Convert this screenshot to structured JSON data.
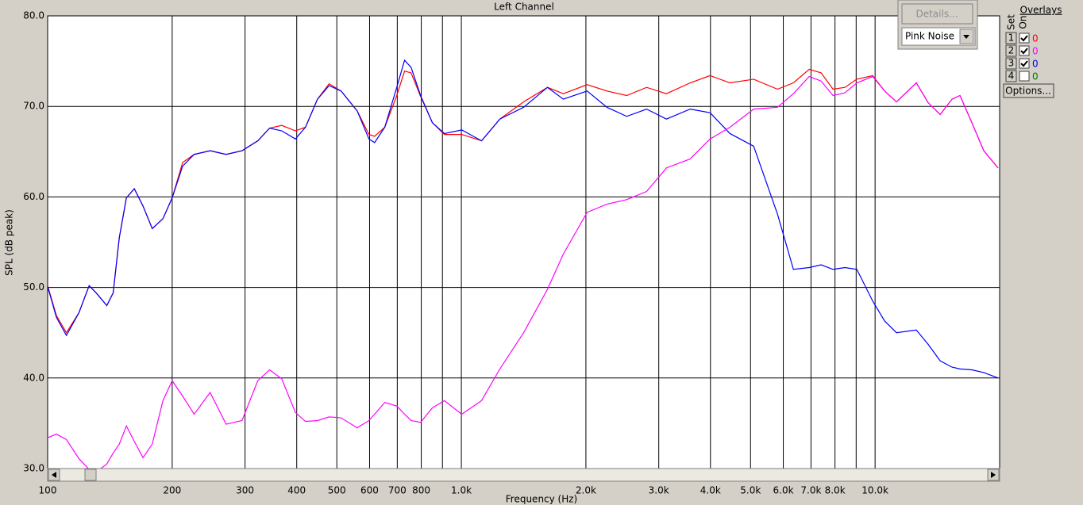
{
  "chart_data": {
    "type": "line",
    "title": "Left Channel",
    "x_label": "Frequency (Hz)",
    "y_label": "SPL (dB peak)",
    "log_x": true,
    "grid": true,
    "xlim": [
      100,
      20000
    ],
    "ylim": [
      30,
      80
    ],
    "xticks": [
      100,
      200,
      300,
      400,
      500,
      600,
      700,
      800,
      {
        "value": 900,
        "label": null
      },
      {
        "value": 1000,
        "label": "1.0k"
      },
      {
        "value": 2000,
        "label": "2.0k"
      },
      {
        "value": 3000,
        "label": "3.0k"
      },
      {
        "value": 4000,
        "label": "4.0k"
      },
      {
        "value": 5000,
        "label": "5.0k"
      },
      {
        "value": 6000,
        "label": "6.0k"
      },
      {
        "value": 7000,
        "label": "7.0k"
      },
      {
        "value": 8000,
        "label": "8.0k"
      },
      {
        "value": 9000,
        "label": null
      },
      {
        "value": 10000,
        "label": "10.0k"
      }
    ],
    "yticks": [
      {
        "value": 30,
        "label": "30.0"
      },
      {
        "value": 40,
        "label": "40.0"
      },
      {
        "value": 50,
        "label": "50.0"
      },
      {
        "value": 60,
        "label": "60.0"
      },
      {
        "value": 70,
        "label": "70.0"
      },
      {
        "value": 80,
        "label": "80.0"
      }
    ],
    "x": [
      100,
      105,
      111,
      119,
      126,
      131,
      139,
      144,
      149,
      155,
      162,
      170,
      179,
      190,
      200,
      212,
      226,
      247,
      270,
      295,
      322,
      344,
      368,
      397,
      420,
      449,
      479,
      512,
      560,
      598,
      617,
      653,
      698,
      729,
      756,
      797,
      851,
      910,
      1002,
      1119,
      1239,
      1414,
      1615,
      1764,
      2014,
      2248,
      2510,
      2804,
      3131,
      3574,
      3992,
      4459,
      5088,
      5809,
      6347,
      6932,
      7405,
      7913,
      8454,
      9034,
      9867,
      10544,
      11265,
      12580,
      13443,
      14362,
      15346,
      16040,
      17137,
      18312,
      19828
    ],
    "series": [
      {
        "color": "#ff0000",
        "values": [
          50.2,
          46.9,
          45.0,
          47.2,
          50.2,
          49.4,
          48.0,
          49.4,
          55.5,
          59.9,
          60.9,
          59.0,
          56.5,
          57.6,
          59.9,
          63.8,
          64.7,
          65.1,
          64.7,
          65.1,
          66.2,
          67.6,
          67.9,
          67.3,
          67.7,
          70.8,
          72.5,
          71.7,
          69.5,
          66.9,
          66.7,
          67.7,
          71.2,
          73.9,
          73.7,
          71.1,
          68.2,
          66.9,
          66.9,
          66.2,
          68.6,
          70.5,
          72.1,
          71.4,
          72.4,
          71.7,
          71.2,
          72.1,
          71.4,
          72.6,
          73.4,
          72.6,
          73.0,
          71.9,
          72.6,
          74.1,
          73.7,
          71.9,
          72.1,
          73.0,
          73.4,
          71.7,
          70.5,
          72.6,
          70.4,
          69.1,
          70.8,
          71.2,
          68.2,
          65.1,
          63.2
        ]
      },
      {
        "color": "#0000ff",
        "values": [
          50.1,
          46.7,
          44.7,
          47.2,
          50.2,
          49.4,
          48.0,
          49.4,
          55.5,
          59.9,
          60.9,
          59.0,
          56.5,
          57.6,
          59.9,
          63.4,
          64.7,
          65.1,
          64.7,
          65.1,
          66.2,
          67.6,
          67.3,
          66.4,
          67.7,
          70.8,
          72.3,
          71.7,
          69.5,
          66.4,
          66.0,
          67.7,
          72.1,
          75.1,
          74.3,
          71.2,
          68.2,
          67.0,
          67.4,
          66.2,
          68.6,
          69.9,
          72.1,
          70.8,
          71.7,
          69.9,
          68.9,
          69.7,
          68.6,
          69.7,
          69.3,
          67.0,
          65.6,
          58.1,
          52.0,
          52.2,
          52.5,
          52.0,
          52.2,
          52.0,
          48.5,
          46.3,
          45.0,
          45.3,
          43.7,
          41.9,
          41.2,
          41.0,
          40.9,
          40.6,
          40.0
        ]
      },
      {
        "color": "#ff00ff",
        "values": [
          33.4,
          33.8,
          33.2,
          31.1,
          29.9,
          29.6,
          30.5,
          31.7,
          32.7,
          34.7,
          33.0,
          31.2,
          32.7,
          37.5,
          39.7,
          38.0,
          36.0,
          38.4,
          34.9,
          35.3,
          39.7,
          40.9,
          39.9,
          36.2,
          35.2,
          35.3,
          35.7,
          35.6,
          34.5,
          35.3,
          36.0,
          37.3,
          36.9,
          36.0,
          35.3,
          35.1,
          36.7,
          37.5,
          36.0,
          37.5,
          41.0,
          45.0,
          49.8,
          53.7,
          58.3,
          59.2,
          59.7,
          60.6,
          63.2,
          64.2,
          66.4,
          67.7,
          69.7,
          69.9,
          71.4,
          73.3,
          72.8,
          71.2,
          71.5,
          72.6,
          73.3,
          71.7,
          70.5,
          72.6,
          70.4,
          69.1,
          70.8,
          71.2,
          68.2,
          65.1,
          63.2
        ]
      }
    ]
  },
  "controls": {
    "details": "Details...",
    "signal": "Pink Noise",
    "options": "Options..."
  },
  "overlays": {
    "title": "Overlays",
    "set_label": "Set",
    "on_label": "On",
    "rows": [
      {
        "set": "1",
        "on": true,
        "value": "0",
        "color": "#ff0000"
      },
      {
        "set": "2",
        "on": true,
        "value": "0",
        "color": "#ff00ff"
      },
      {
        "set": "3",
        "on": true,
        "value": "0",
        "color": "#0000ff"
      },
      {
        "set": "4",
        "on": false,
        "value": "0",
        "color": "#008000"
      }
    ]
  }
}
